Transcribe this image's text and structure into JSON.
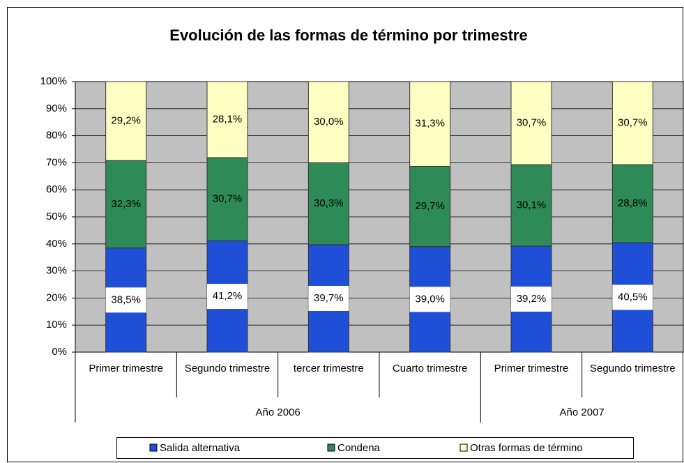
{
  "chart_data": {
    "type": "stacked_bar",
    "title": "Evolución de las formas de término por trimestre",
    "groups": [
      {
        "name": "Año 2006",
        "categories": [
          "Primer trimestre",
          "Segundo trimestre",
          "tercer trimestre",
          "Cuarto trimestre"
        ]
      },
      {
        "name": "Año 2007",
        "categories": [
          "Primer trimestre",
          "Segundo trimestre"
        ]
      }
    ],
    "series": [
      {
        "name": "Salida alternativa",
        "color": "#1f4fd6",
        "values": [
          38.5,
          41.2,
          39.7,
          39.0,
          39.2,
          40.5
        ],
        "value_labels": [
          "38,5%",
          "41,2%",
          "39,7%",
          "39,0%",
          "39,2%",
          "40,5%"
        ]
      },
      {
        "name": "Condena",
        "color": "#2e8b57",
        "values": [
          32.3,
          30.7,
          30.3,
          29.7,
          30.1,
          28.8
        ],
        "value_labels": [
          "32,3%",
          "30,7%",
          "30,3%",
          "29,7%",
          "30,1%",
          "28,8%"
        ]
      },
      {
        "name": "Otras formas de término",
        "color": "#ffffc4",
        "values": [
          29.2,
          28.1,
          30.0,
          31.3,
          30.7,
          30.7
        ],
        "value_labels": [
          "29,2%",
          "28,1%",
          "30,0%",
          "31,3%",
          "30,7%",
          "30,7%"
        ]
      }
    ],
    "ylim": [
      0,
      100
    ],
    "yticks": [
      {
        "value": 0,
        "label": "0%"
      },
      {
        "value": 10,
        "label": "10%"
      },
      {
        "value": 20,
        "label": "20%"
      },
      {
        "value": 30,
        "label": "30%"
      },
      {
        "value": 40,
        "label": "40%"
      },
      {
        "value": 50,
        "label": "50%"
      },
      {
        "value": 60,
        "label": "60%"
      },
      {
        "value": 70,
        "label": "70%"
      },
      {
        "value": 80,
        "label": "80%"
      },
      {
        "value": 90,
        "label": "90%"
      },
      {
        "value": 100,
        "label": "100%"
      }
    ],
    "grid": true,
    "legend": "bottom"
  }
}
